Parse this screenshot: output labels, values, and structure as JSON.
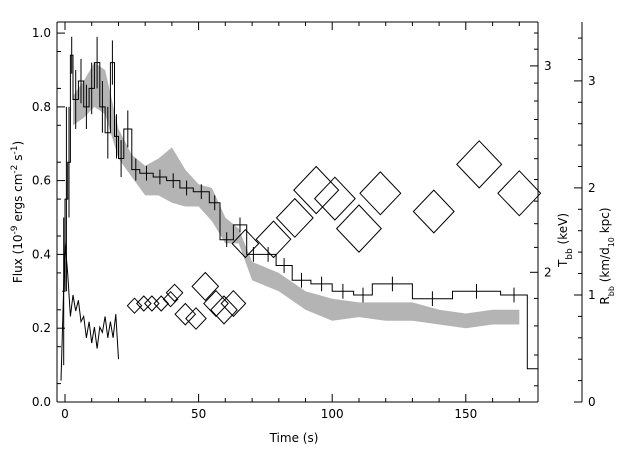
{
  "chart_data": {
    "type": "line",
    "xlabel": "Time (s)",
    "ylabel": "Flux (10^-9 ergs cm^-2 s^-1)",
    "y2label": "T_bb (keV)",
    "y3label": "R_bb (km/d_10 kpc)",
    "xlim": [
      -3,
      177
    ],
    "ylim": [
      0,
      1.03
    ],
    "y2lim": [
      1.55,
      3.27
    ],
    "y2scale": "log",
    "y3lim": [
      0,
      3.55
    ],
    "xticks": [
      "0",
      "50",
      "100",
      "150"
    ],
    "yticks": [
      "0.0",
      "0.2",
      "0.4",
      "0.6",
      "0.8",
      "1.0"
    ],
    "y2ticks": [
      "2",
      "3"
    ],
    "y3ticks": [
      "0",
      "1",
      "2",
      "3"
    ],
    "grid": false,
    "series": [
      {
        "style": "step-with-errorbars",
        "color": "#000000",
        "points": [
          {
            "x0": -1.0,
            "x1": 0.0,
            "y": 0.3,
            "err": 0.2
          },
          {
            "x0": 0.0,
            "x1": 1.0,
            "y": 0.55,
            "err": 0.25
          },
          {
            "x0": 1.0,
            "x1": 2.0,
            "y": 0.65,
            "err": 0.15
          },
          {
            "x0": 2.0,
            "x1": 3.0,
            "y": 0.94,
            "err": 0.05
          },
          {
            "x0": 3.0,
            "x1": 5.0,
            "y": 0.82,
            "err": 0.08
          },
          {
            "x0": 5.0,
            "x1": 7.0,
            "y": 0.87,
            "err": 0.06
          },
          {
            "x0": 7.0,
            "x1": 9.0,
            "y": 0.8,
            "err": 0.06
          },
          {
            "x0": 9.0,
            "x1": 11.0,
            "y": 0.85,
            "err": 0.07
          },
          {
            "x0": 11.0,
            "x1": 13.0,
            "y": 0.92,
            "err": 0.07
          },
          {
            "x0": 13.0,
            "x1": 15.0,
            "y": 0.8,
            "err": 0.07
          },
          {
            "x0": 15.0,
            "x1": 17.0,
            "y": 0.73,
            "err": 0.07
          },
          {
            "x0": 17.0,
            "x1": 18.5,
            "y": 0.92,
            "err": 0.06
          },
          {
            "x0": 18.5,
            "x1": 20.0,
            "y": 0.72,
            "err": 0.06
          },
          {
            "x0": 20.0,
            "x1": 22.0,
            "y": 0.66,
            "err": 0.05
          },
          {
            "x0": 22.0,
            "x1": 25.0,
            "y": 0.74,
            "err": 0.05
          },
          {
            "x0": 25.0,
            "x1": 28.0,
            "y": 0.63,
            "err": 0.03
          },
          {
            "x0": 28.0,
            "x1": 33.0,
            "y": 0.62,
            "err": 0.02
          },
          {
            "x0": 33.0,
            "x1": 38.0,
            "y": 0.61,
            "err": 0.02
          },
          {
            "x0": 38.0,
            "x1": 43.0,
            "y": 0.6,
            "err": 0.02
          },
          {
            "x0": 43.0,
            "x1": 48.0,
            "y": 0.58,
            "err": 0.02
          },
          {
            "x0": 48.0,
            "x1": 54.0,
            "y": 0.57,
            "err": 0.02
          },
          {
            "x0": 54.0,
            "x1": 58.0,
            "y": 0.54,
            "err": 0.02
          },
          {
            "x0": 58.0,
            "x1": 63.0,
            "y": 0.44,
            "err": 0.02
          },
          {
            "x0": 63.0,
            "x1": 68.0,
            "y": 0.48,
            "err": 0.02
          },
          {
            "x0": 68.0,
            "x1": 73.0,
            "y": 0.4,
            "err": 0.02
          },
          {
            "x0": 73.0,
            "x1": 79.0,
            "y": 0.4,
            "err": 0.02
          },
          {
            "x0": 79.0,
            "x1": 85.0,
            "y": 0.37,
            "err": 0.02
          },
          {
            "x0": 85.0,
            "x1": 92.0,
            "y": 0.33,
            "err": 0.02
          },
          {
            "x0": 92.0,
            "x1": 100.0,
            "y": 0.32,
            "err": 0.02
          },
          {
            "x0": 100.0,
            "x1": 108.0,
            "y": 0.3,
            "err": 0.02
          },
          {
            "x0": 108.0,
            "x1": 115.0,
            "y": 0.29,
            "err": 0.02
          },
          {
            "x0": 115.0,
            "x1": 130.0,
            "y": 0.32,
            "err": 0.02
          },
          {
            "x0": 130.0,
            "x1": 145.0,
            "y": 0.28,
            "err": 0.02
          },
          {
            "x0": 145.0,
            "x1": 163.0,
            "y": 0.3,
            "err": 0.02
          },
          {
            "x0": 163.0,
            "x1": 173.0,
            "y": 0.29,
            "err": 0.02
          },
          {
            "x0": 173.0,
            "x1": 177.0,
            "y": 0.09,
            "err": 0.0
          }
        ]
      },
      {
        "style": "shaded-band",
        "color": "#b4b4b4",
        "axis": "y",
        "x": [
          3,
          7,
          11,
          15,
          20,
          25,
          30,
          35,
          40,
          45,
          50,
          55,
          60,
          65,
          70,
          80,
          90,
          100,
          110,
          120,
          130,
          140,
          150,
          160,
          170
        ],
        "lower": [
          0.75,
          0.77,
          0.8,
          0.78,
          0.66,
          0.61,
          0.56,
          0.56,
          0.54,
          0.53,
          0.53,
          0.49,
          0.43,
          0.43,
          0.33,
          0.3,
          0.25,
          0.22,
          0.23,
          0.22,
          0.22,
          0.21,
          0.2,
          0.21,
          0.21
        ],
        "upper": [
          0.83,
          0.87,
          0.92,
          0.9,
          0.74,
          0.67,
          0.64,
          0.66,
          0.69,
          0.63,
          0.59,
          0.58,
          0.5,
          0.47,
          0.38,
          0.35,
          0.3,
          0.28,
          0.27,
          0.27,
          0.27,
          0.25,
          0.24,
          0.25,
          0.25
        ]
      },
      {
        "style": "zigzag",
        "color": "#000000",
        "axis": "y3",
        "x": [
          -1.5,
          0,
          1,
          2,
          3,
          4,
          5,
          6,
          7,
          8,
          9,
          10,
          11,
          12,
          13,
          14,
          15,
          16,
          17,
          18,
          19,
          20
        ],
        "y": [
          0.2,
          1.5,
          1.2,
          0.8,
          1.0,
          0.85,
          0.95,
          0.75,
          0.8,
          0.6,
          0.75,
          0.55,
          0.7,
          0.5,
          0.7,
          0.65,
          0.8,
          0.6,
          0.75,
          0.6,
          0.82,
          0.4
        ]
      },
      {
        "style": "diamonds",
        "color": "#000000",
        "axis": "y3",
        "points": [
          {
            "x": 26.0,
            "y": 0.9,
            "err": 0.07
          },
          {
            "x": 29.5,
            "y": 0.92,
            "err": 0.07
          },
          {
            "x": 32.5,
            "y": 0.92,
            "err": 0.07
          },
          {
            "x": 36.0,
            "y": 0.92,
            "err": 0.07
          },
          {
            "x": 39.5,
            "y": 0.96,
            "err": 0.07
          },
          {
            "x": 41.0,
            "y": 1.02,
            "err": 0.08
          },
          {
            "x": 45.0,
            "y": 0.82,
            "err": 0.1
          },
          {
            "x": 49.0,
            "y": 0.78,
            "err": 0.1
          },
          {
            "x": 52.5,
            "y": 1.08,
            "err": 0.13
          },
          {
            "x": 56.5,
            "y": 0.92,
            "err": 0.12
          },
          {
            "x": 59.5,
            "y": 0.86,
            "err": 0.13
          },
          {
            "x": 63.0,
            "y": 0.92,
            "err": 0.12
          },
          {
            "x": 67.5,
            "y": 1.48,
            "err": 0.13
          },
          {
            "x": 78.0,
            "y": 1.52,
            "err": 0.17
          },
          {
            "x": 86.0,
            "y": 1.72,
            "err": 0.18
          },
          {
            "x": 94.0,
            "y": 1.98,
            "err": 0.22
          },
          {
            "x": 101.0,
            "y": 1.9,
            "err": 0.2
          },
          {
            "x": 110.0,
            "y": 1.62,
            "err": 0.22
          },
          {
            "x": 118.0,
            "y": 1.95,
            "err": 0.2
          },
          {
            "x": 138.0,
            "y": 1.78,
            "err": 0.2
          },
          {
            "x": 155.0,
            "y": 2.22,
            "err": 0.22
          },
          {
            "x": 170.0,
            "y": 1.95,
            "err": 0.21
          }
        ]
      }
    ]
  }
}
